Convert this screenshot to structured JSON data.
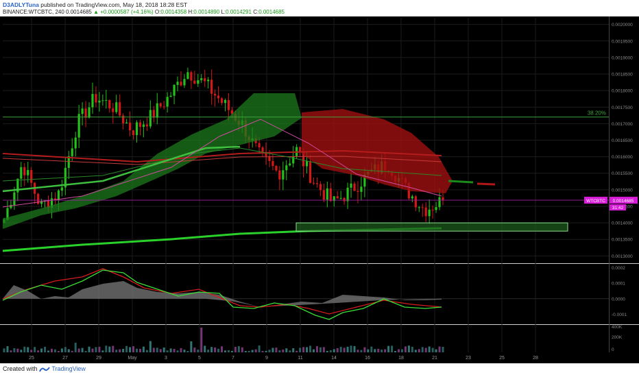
{
  "header": {
    "author": "D3ADLYTuna",
    "published": "published on TradingView.com, May 18, 2018 18:28 EST",
    "symbol": "BINANCE:WTCBTC, 240",
    "last": "0.0014685",
    "change": "▲ +0.0000587 (+4.16%)",
    "o_label": "O:",
    "o": "0.0014358",
    "h_label": "H:",
    "h": "0.0014890",
    "l_label": "L:",
    "l": "0.0014291",
    "c_label": "C:",
    "c": "0.0014685"
  },
  "footer": {
    "created_with": "Created with",
    "brand": "TradingView"
  },
  "colors": {
    "background": "#000000",
    "bull": "#26c01a",
    "bear": "#d21818",
    "cloud_bull": "#1c7a1c",
    "cloud_bear": "#a01010",
    "fib": "#3fa23f",
    "price_tag": "#d81bd8",
    "grid": "#1c1c1c"
  },
  "chart_data": [
    {
      "type": "candlestick",
      "symbol": "WTCBTC",
      "interval": "240",
      "ylim": [
        0.00128,
        0.00202
      ],
      "y_ticks": [
        "0.0020000",
        "0.0019500",
        "0.0019000",
        "0.0018500",
        "0.0018000",
        "0.0017500",
        "0.0017000",
        "0.0016500",
        "0.0016000",
        "0.0015500",
        "0.0015000",
        "0.0014500",
        "0.0014000",
        "0.0013500",
        "0.0013000"
      ],
      "x_ticks": [
        "25",
        "27",
        "29",
        "May",
        "3",
        "5",
        "7",
        "9",
        "11",
        "14",
        "16",
        "18",
        "21",
        "23",
        "25",
        "28"
      ],
      "current_price": 0.0014685,
      "current_price_label": "0.0014685",
      "symbol_tag": "WTCBTC",
      "countdown_label": "31:42",
      "fib_level": {
        "label": "38.20%",
        "price": 0.00172
      },
      "support_zone": {
        "from": 0.001375,
        "to": 0.0014
      },
      "price_path": [
        [
          "Apr 24",
          0.00141
        ],
        [
          "Apr 25",
          0.00158
        ],
        [
          "Apr 26",
          0.00145
        ],
        [
          "Apr 27",
          0.00149
        ],
        [
          "Apr 28",
          0.0017
        ],
        [
          "Apr 29",
          0.00178
        ],
        [
          "Apr 30",
          0.00175
        ],
        [
          "May 1",
          0.00168
        ],
        [
          "May 2",
          0.00172
        ],
        [
          "May 3",
          0.00178
        ],
        [
          "May 4",
          0.00186
        ],
        [
          "May 5",
          0.00182
        ],
        [
          "May 6",
          0.00176
        ],
        [
          "May 7",
          0.0017
        ],
        [
          "May 8",
          0.0016
        ],
        [
          "May 9",
          0.00155
        ],
        [
          "May 10",
          0.00162
        ],
        [
          "May 11",
          0.00152
        ],
        [
          "May 12",
          0.00146
        ],
        [
          "May 13",
          0.0015
        ],
        [
          "May 14",
          0.00155
        ],
        [
          "May 15",
          0.00158
        ],
        [
          "May 16",
          0.0015
        ],
        [
          "May 17",
          0.00144
        ],
        [
          "May 18",
          0.001468
        ]
      ]
    },
    {
      "type": "line",
      "name": "MACD",
      "y_ticks": [
        "0.0002",
        "0.0001",
        "0.0000",
        "-0.0001"
      ],
      "ylim": [
        -0.00016,
        0.00022
      ]
    },
    {
      "type": "bar",
      "name": "Volume",
      "y_ticks": [
        "400K",
        "200K",
        "0"
      ]
    }
  ]
}
